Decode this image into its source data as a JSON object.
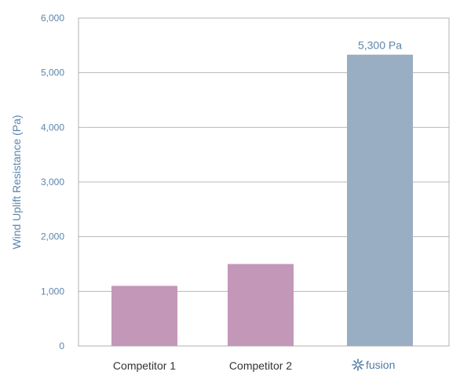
{
  "chart_data": {
    "type": "bar",
    "categories": [
      "Competitor 1",
      "Competitor 2",
      "fusion"
    ],
    "values": [
      1100,
      1500,
      5330
    ],
    "ylabel": "Wind Uplift Resistance (Pa)",
    "xlabel": "",
    "ylim": [
      0,
      6000
    ],
    "yticks": [
      "0",
      "1,000",
      "2,000",
      "3,000",
      "4,000",
      "5,000",
      "6,000"
    ],
    "yticks_values": [
      0,
      1000,
      2000,
      3000,
      4000,
      5000,
      6000
    ],
    "data_labels": [
      "",
      "",
      "5,300 Pa"
    ],
    "grid": true,
    "legend": "none",
    "colors": {
      "competitor": "#c397b8",
      "fusion": "#9aaec3",
      "axis_text": "#5b86ad",
      "category_text": "#333333",
      "logo": "#4f79a3",
      "grid": "#b8b8b8",
      "frame": "#b0b0b0"
    },
    "bar_colors": [
      "#c397b8",
      "#c397b8",
      "#9aaec3"
    ],
    "logo_icon": "fusion-star-icon"
  }
}
